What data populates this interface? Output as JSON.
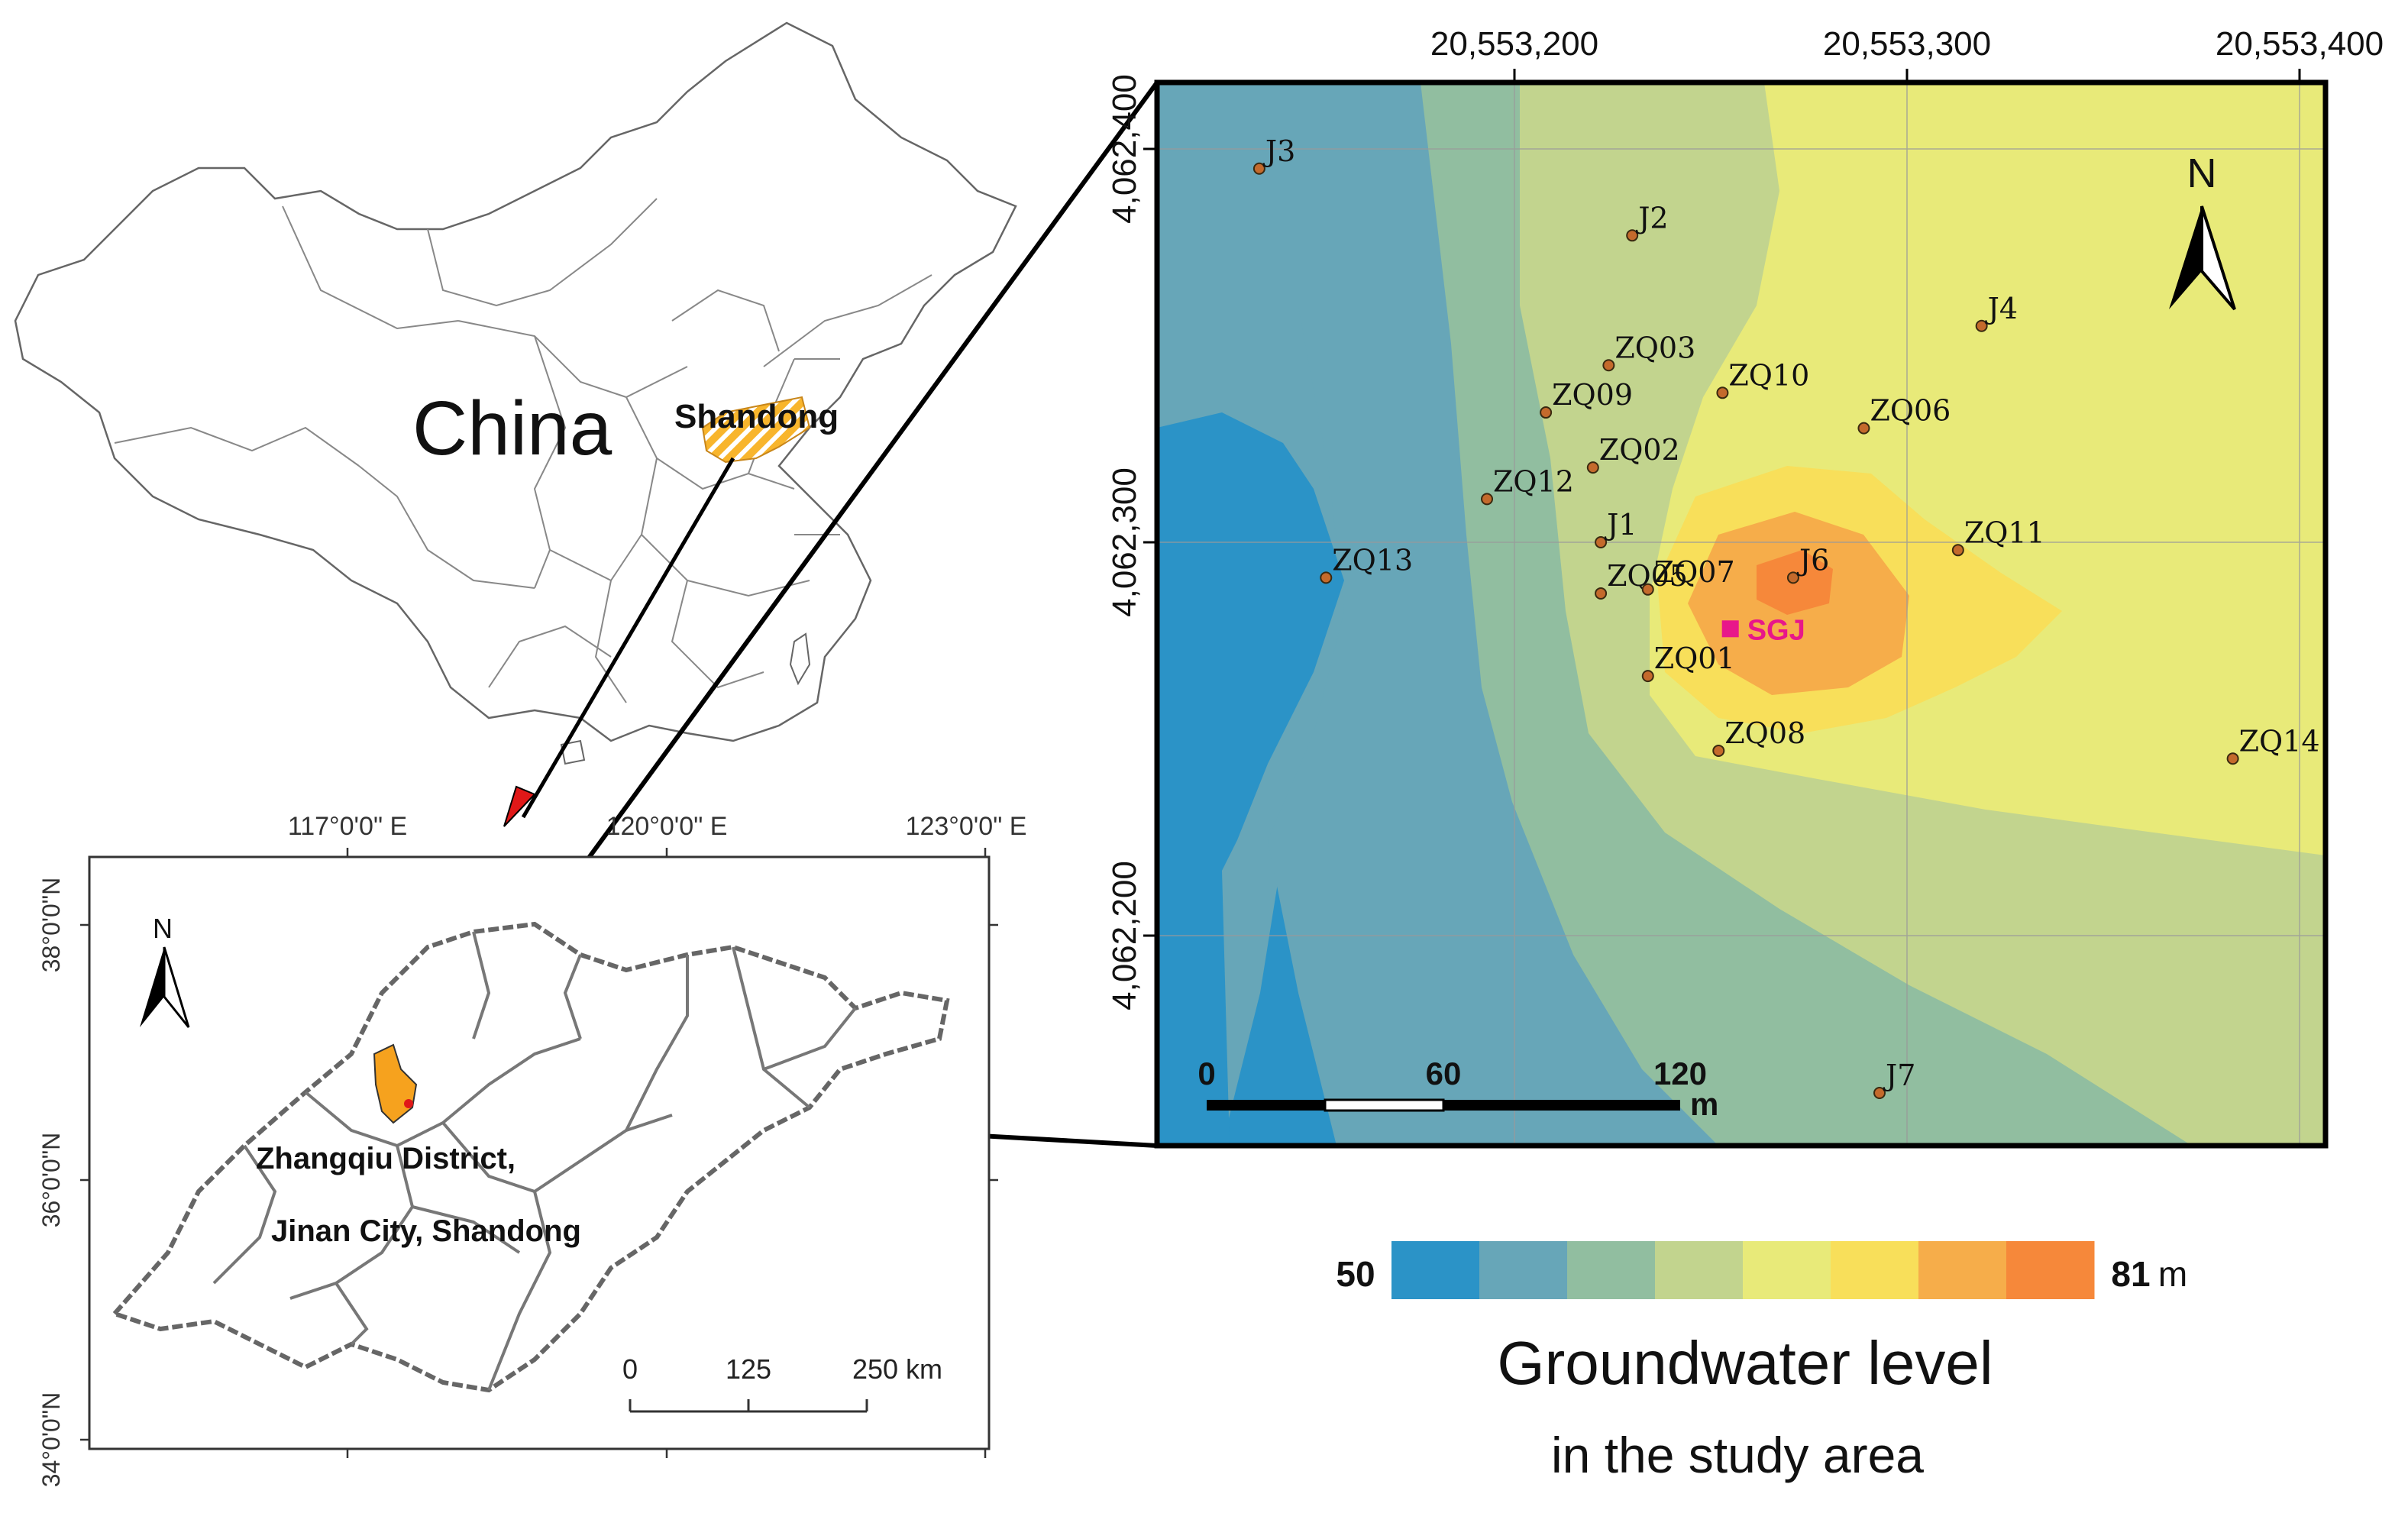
{
  "china_map": {
    "country_label": "China",
    "province_label": "Shandong"
  },
  "shandong_map": {
    "north_label": "N",
    "lon_labels": [
      "117°0'0\" E",
      "120°0'0\" E",
      "123°0'0\" E"
    ],
    "lat_labels": [
      "38°0'0\"N",
      "36°0'0\"N",
      "34°0'0\"N"
    ],
    "district_label_line1": "Zhangqiu District,",
    "district_label_line2": "Jinan City, Shandong",
    "scale_ticks": [
      "0",
      "125",
      "250 km"
    ]
  },
  "study_map": {
    "north_label": "N",
    "x_ticks": [
      "20,553,200",
      "20,553,300",
      "20,553,400"
    ],
    "y_ticks": [
      "4,062,400",
      "4,062,300",
      "4,062,200"
    ],
    "scale_ticks": [
      "0",
      "60",
      "120"
    ],
    "scale_unit": "m",
    "site_label": "SGJ",
    "wells": [
      {
        "name": "J3",
        "x": 20553135,
        "y": 4062395
      },
      {
        "name": "J2",
        "x": 20553230,
        "y": 4062378
      },
      {
        "name": "J4",
        "x": 20553319,
        "y": 4062355
      },
      {
        "name": "ZQ03",
        "x": 20553224,
        "y": 4062345
      },
      {
        "name": "ZQ10",
        "x": 20553253,
        "y": 4062338
      },
      {
        "name": "ZQ09",
        "x": 20553208,
        "y": 4062333
      },
      {
        "name": "ZQ06",
        "x": 20553289,
        "y": 4062329
      },
      {
        "name": "ZQ02",
        "x": 20553220,
        "y": 4062319
      },
      {
        "name": "ZQ12",
        "x": 20553193,
        "y": 4062311
      },
      {
        "name": "J1",
        "x": 20553222,
        "y": 4062300
      },
      {
        "name": "ZQ11",
        "x": 20553313,
        "y": 4062298
      },
      {
        "name": "ZQ13",
        "x": 20553152,
        "y": 4062291
      },
      {
        "name": "J6",
        "x": 20553271,
        "y": 4062291
      },
      {
        "name": "ZQ05",
        "x": 20553222,
        "y": 4062287
      },
      {
        "name": "ZQ07",
        "x": 20553234,
        "y": 4062288
      },
      {
        "name": "ZQ01",
        "x": 20553234,
        "y": 4062266
      },
      {
        "name": "ZQ08",
        "x": 20553252,
        "y": 4062247
      },
      {
        "name": "ZQ14",
        "x": 20553383,
        "y": 4062245
      },
      {
        "name": "J7",
        "x": 20553293,
        "y": 4062160
      }
    ],
    "site": {
      "x": 20553255,
      "y": 4062278
    }
  },
  "legend": {
    "min_label": "50",
    "max_label": "81",
    "unit": "m",
    "title_line1": "Groundwater level",
    "title_line2": "in the study area",
    "colors": [
      "#2b93c7",
      "#67a6b8",
      "#91bea0",
      "#c2d48e",
      "#e8ea79",
      "#f8df5a",
      "#f6ad4a",
      "#f6883a"
    ]
  }
}
